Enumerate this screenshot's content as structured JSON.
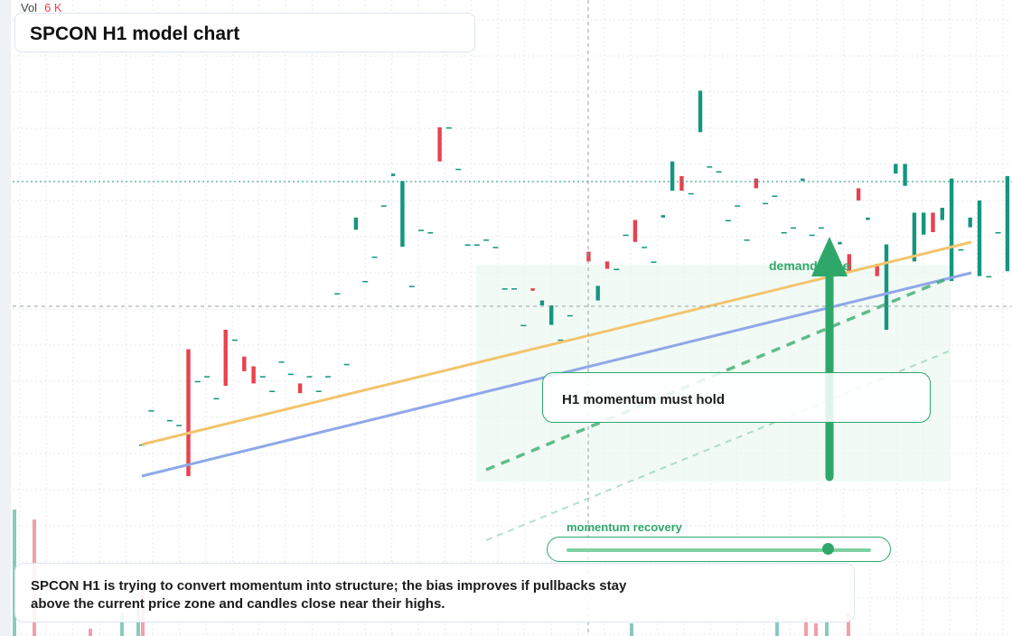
{
  "header": {
    "title": "SPCON H1 model chart",
    "vol_label": "Vol",
    "vol_value": "6 K"
  },
  "annotations": {
    "zone_label": "demand zone",
    "note": "H1 momentum must hold",
    "slider_label": "momentum recovery",
    "slider_level": 0.86,
    "summary": "SPCON H1 is trying to convert momentum into structure; the bias improves if pullbacks stay above the current price zone and candles close near their highs."
  },
  "colors": {
    "up": "#14967f",
    "down": "#e8414f",
    "trend_upper": "#f2c46d",
    "trend_lower": "#8fa8e8",
    "accent_green": "#2ea86a",
    "zone_fill": "#eaf7ee"
  },
  "chart_data": {
    "type": "candlestick",
    "title": "SPCON H1 model chart",
    "ylim": [
      0,
      100
    ],
    "x": [
      0,
      1,
      2,
      3,
      4,
      5,
      6,
      7,
      8,
      9,
      10,
      11,
      12,
      13,
      14,
      15,
      16,
      17,
      18,
      19,
      20,
      21,
      22,
      23,
      24,
      25,
      26,
      27,
      28,
      29,
      30,
      31,
      32,
      33,
      34,
      35,
      36,
      37,
      38,
      39,
      40,
      41,
      42,
      43,
      44,
      45,
      46,
      47,
      48,
      49,
      50,
      51,
      52,
      53,
      54,
      55,
      56,
      57,
      58,
      59,
      60,
      61,
      62,
      63,
      64,
      65,
      66,
      67,
      68,
      69,
      70,
      71,
      72,
      73,
      74,
      75,
      76,
      77,
      78,
      79,
      80,
      81,
      82,
      83,
      84,
      85,
      86,
      87,
      88,
      89,
      90,
      91,
      92,
      93
    ],
    "candles": [
      {
        "o": 3,
        "c": 3
      },
      {
        "o": 17,
        "c": 17
      },
      {
        "o": 5,
        "c": 5
      },
      {
        "o": 13,
        "c": 13
      },
      {
        "o": 11,
        "c": 11
      },
      {
        "o": 42,
        "c": -10
      },
      {
        "o": 29,
        "c": 29
      },
      {
        "o": 31,
        "c": 31
      },
      {
        "o": 22,
        "c": 22
      },
      {
        "o": 50,
        "c": 27
      },
      {
        "o": 46,
        "c": 46
      },
      {
        "o": 39,
        "c": 33
      },
      {
        "o": 35,
        "c": 28
      },
      {
        "o": 31,
        "c": 31
      },
      {
        "o": 25,
        "c": 25
      },
      {
        "o": 37,
        "c": 37
      },
      {
        "o": 32,
        "c": 32
      },
      {
        "o": 28,
        "c": 24
      },
      {
        "o": 31,
        "c": 31
      },
      {
        "o": 25,
        "c": 25
      },
      {
        "o": 31,
        "c": 31
      },
      {
        "o": 65,
        "c": 65
      },
      {
        "o": 36,
        "c": 36
      },
      {
        "o": 91,
        "c": 96
      },
      {
        "o": 70,
        "c": 70
      },
      {
        "o": 80,
        "c": 80
      },
      {
        "o": 101,
        "c": 101
      },
      {
        "o": 113,
        "c": 114
      },
      {
        "o": 84,
        "c": 111
      },
      {
        "o": 68,
        "c": 68
      },
      {
        "o": 91,
        "c": 91
      },
      {
        "o": 90,
        "c": 90
      },
      {
        "o": 133,
        "c": 119
      },
      {
        "o": 133,
        "c": 133
      },
      {
        "o": 116,
        "c": 116
      },
      {
        "o": 85,
        "c": 85
      },
      {
        "o": 85,
        "c": 85
      },
      {
        "o": 87,
        "c": 87
      },
      {
        "o": 84,
        "c": 84
      },
      {
        "o": 67,
        "c": 67
      },
      {
        "o": 67,
        "c": 67
      },
      {
        "o": 52,
        "c": 52
      },
      {
        "o": 67,
        "c": 66
      },
      {
        "o": 60,
        "c": 62
      },
      {
        "o": 52,
        "c": 60
      },
      {
        "o": 46,
        "c": 46
      },
      {
        "o": 56,
        "c": 56
      },
      {
        "o": 47,
        "c": 47
      },
      {
        "o": 82,
        "c": 78
      },
      {
        "o": 62,
        "c": 68
      },
      {
        "o": 78,
        "c": 75
      },
      {
        "o": 75,
        "c": 75
      },
      {
        "o": 89,
        "c": 89
      },
      {
        "o": 95,
        "c": 86
      },
      {
        "o": 84,
        "c": 84
      },
      {
        "o": 78,
        "c": 78
      },
      {
        "o": 96,
        "c": 97
      },
      {
        "o": 107,
        "c": 119
      },
      {
        "o": 113,
        "c": 107
      },
      {
        "o": 106,
        "c": 106
      },
      {
        "o": 131,
        "c": 148
      },
      {
        "o": 117,
        "c": 117
      },
      {
        "o": 115,
        "c": 115
      },
      {
        "o": 95,
        "c": 95
      },
      {
        "o": 101,
        "c": 101
      },
      {
        "o": 87,
        "c": 87
      },
      {
        "o": 112,
        "c": 108
      },
      {
        "o": 102,
        "c": 102
      },
      {
        "o": 105,
        "c": 105
      },
      {
        "o": 90,
        "c": 90
      },
      {
        "o": 92,
        "c": 92
      },
      {
        "o": 111,
        "c": 112
      },
      {
        "o": 89,
        "c": 89
      },
      {
        "o": 92,
        "c": 92
      },
      {
        "o": 81,
        "c": 79
      },
      {
        "o": 85,
        "c": 86
      },
      {
        "o": 81,
        "c": 74
      },
      {
        "o": 108,
        "c": 103
      },
      {
        "o": 95,
        "c": 96
      },
      {
        "o": 77,
        "c": 72
      },
      {
        "o": 50,
        "c": 85
      },
      {
        "o": 114,
        "c": 118
      },
      {
        "o": 109,
        "c": 118
      },
      {
        "o": 78,
        "c": 98
      },
      {
        "o": 89,
        "c": 98
      },
      {
        "o": 98,
        "c": 90
      },
      {
        "o": 95,
        "c": 100
      },
      {
        "o": 70,
        "c": 112
      },
      {
        "o": 83,
        "c": 83
      },
      {
        "o": 92,
        "c": 96
      },
      {
        "o": 72,
        "c": 103
      },
      {
        "o": 72,
        "c": 72
      },
      {
        "o": 90,
        "c": 90
      },
      {
        "o": 74,
        "c": 113
      }
    ]
  }
}
